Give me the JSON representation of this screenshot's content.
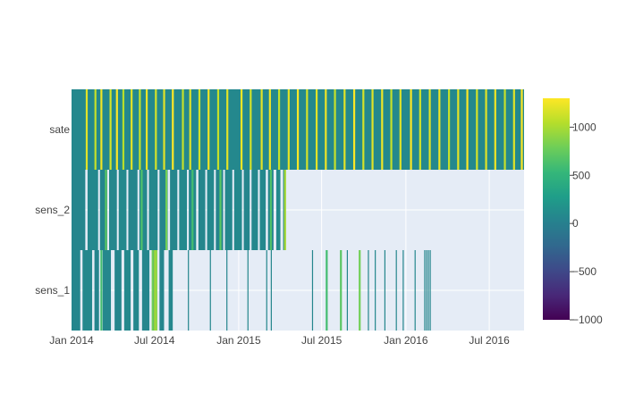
{
  "chart_data": {
    "type": "heatmap",
    "title": "",
    "xlabel": "",
    "ylabel": "",
    "x_range": [
      "2014-01-01",
      "2016-09-15"
    ],
    "x_ticks": [
      {
        "date": "2014-01-01",
        "label": "Jan 2014"
      },
      {
        "date": "2014-07-01",
        "label": "Jul 2014"
      },
      {
        "date": "2015-01-01",
        "label": "Jan 2015"
      },
      {
        "date": "2015-07-01",
        "label": "Jul 2015"
      },
      {
        "date": "2016-01-01",
        "label": "Jan 2016"
      },
      {
        "date": "2016-07-01",
        "label": "Jul 2016"
      }
    ],
    "rows": [
      "sens_1",
      "sens_2",
      "sate"
    ],
    "series": [
      {
        "name": "sate",
        "start": "2014-01-01",
        "end": "2016-09-15",
        "base_value": 80,
        "spikes": [
          {
            "date": "2014-02-01",
            "value": 1200
          },
          {
            "date": "2014-02-20",
            "value": 1100
          },
          {
            "date": "2014-03-05",
            "value": 1250
          },
          {
            "date": "2014-03-25",
            "value": 1150
          },
          {
            "date": "2014-04-08",
            "value": 1300
          },
          {
            "date": "2014-04-22",
            "value": 1050
          },
          {
            "date": "2014-05-10",
            "value": 1200
          },
          {
            "date": "2014-05-28",
            "value": 1100
          },
          {
            "date": "2014-06-12",
            "value": 1250
          },
          {
            "date": "2014-07-02",
            "value": 1150
          },
          {
            "date": "2014-07-20",
            "value": 1200
          },
          {
            "date": "2014-08-08",
            "value": 1300
          },
          {
            "date": "2014-08-30",
            "value": 1100
          },
          {
            "date": "2014-09-15",
            "value": 1200
          },
          {
            "date": "2014-10-05",
            "value": 1150
          },
          {
            "date": "2014-10-25",
            "value": 1250
          },
          {
            "date": "2014-11-15",
            "value": 1100
          },
          {
            "date": "2014-12-05",
            "value": 1200
          },
          {
            "date": "2015-01-05",
            "value": 1300
          },
          {
            "date": "2015-01-25",
            "value": 1150
          },
          {
            "date": "2015-02-18",
            "value": 1200
          },
          {
            "date": "2015-03-08",
            "value": 1250
          },
          {
            "date": "2015-03-28",
            "value": 1100
          },
          {
            "date": "2015-04-18",
            "value": 1200
          },
          {
            "date": "2015-05-08",
            "value": 1300
          },
          {
            "date": "2015-05-28",
            "value": 1150
          },
          {
            "date": "2015-06-18",
            "value": 1200
          },
          {
            "date": "2015-07-08",
            "value": 1250
          },
          {
            "date": "2015-07-28",
            "value": 1100
          },
          {
            "date": "2015-08-18",
            "value": 1200
          },
          {
            "date": "2015-09-08",
            "value": 1300
          },
          {
            "date": "2015-09-28",
            "value": 1150
          },
          {
            "date": "2015-10-18",
            "value": 1200
          },
          {
            "date": "2015-11-08",
            "value": 1250
          },
          {
            "date": "2015-11-28",
            "value": 1100
          },
          {
            "date": "2015-12-18",
            "value": 1200
          },
          {
            "date": "2016-01-10",
            "value": 1300
          },
          {
            "date": "2016-01-30",
            "value": 1150
          },
          {
            "date": "2016-02-20",
            "value": 1200
          },
          {
            "date": "2016-03-12",
            "value": 1250
          },
          {
            "date": "2016-04-02",
            "value": 1100
          },
          {
            "date": "2016-04-22",
            "value": 1200
          },
          {
            "date": "2016-05-12",
            "value": 1300
          },
          {
            "date": "2016-06-02",
            "value": 1150
          },
          {
            "date": "2016-06-22",
            "value": 1200
          },
          {
            "date": "2016-07-12",
            "value": 1250
          },
          {
            "date": "2016-08-02",
            "value": 1100
          },
          {
            "date": "2016-08-22",
            "value": 1200
          },
          {
            "date": "2016-09-08",
            "value": 1300
          }
        ]
      },
      {
        "name": "sens_2",
        "segments": [
          {
            "start": "2014-01-01",
            "end": "2014-01-31",
            "value": 60
          },
          {
            "start": "2014-02-05",
            "end": "2014-02-28",
            "value": 80
          },
          {
            "start": "2014-03-04",
            "end": "2014-03-20",
            "value": 50
          },
          {
            "start": "2014-03-24",
            "end": "2014-04-10",
            "value": 70
          },
          {
            "start": "2014-04-14",
            "end": "2014-05-01",
            "value": 90
          },
          {
            "start": "2014-05-05",
            "end": "2014-05-25",
            "value": 60
          },
          {
            "start": "2014-05-29",
            "end": "2014-06-15",
            "value": 70
          },
          {
            "start": "2014-06-19",
            "end": "2014-07-08",
            "value": 80
          },
          {
            "start": "2014-07-12",
            "end": "2014-07-30",
            "value": 50
          },
          {
            "start": "2014-08-04",
            "end": "2014-08-20",
            "value": 60
          },
          {
            "start": "2014-08-24",
            "end": "2014-09-10",
            "value": 90
          },
          {
            "start": "2014-09-14",
            "end": "2014-09-30",
            "value": 70
          },
          {
            "start": "2014-10-05",
            "end": "2014-10-20",
            "value": 60
          },
          {
            "start": "2014-10-24",
            "end": "2014-11-08",
            "value": 80
          },
          {
            "start": "2014-11-12",
            "end": "2014-11-28",
            "value": 50
          },
          {
            "start": "2014-12-02",
            "end": "2014-12-18",
            "value": 70
          },
          {
            "start": "2014-12-22",
            "end": "2015-01-08",
            "value": 90
          },
          {
            "start": "2015-01-12",
            "end": "2015-01-25",
            "value": 60
          },
          {
            "start": "2015-01-29",
            "end": "2015-02-12",
            "value": 70
          },
          {
            "start": "2015-02-16",
            "end": "2015-03-01",
            "value": 80
          },
          {
            "start": "2015-03-06",
            "end": "2015-03-18",
            "value": 60
          },
          {
            "start": "2015-03-24",
            "end": "2015-04-02",
            "value": 90
          },
          {
            "start": "2015-04-08",
            "end": "2015-04-14",
            "value": 70
          }
        ],
        "spikes": [
          {
            "date": "2014-03-15",
            "value": 700
          },
          {
            "date": "2014-06-01",
            "value": 650
          },
          {
            "date": "2014-07-25",
            "value": 800
          },
          {
            "date": "2014-09-20",
            "value": 600
          },
          {
            "date": "2014-11-20",
            "value": 700
          },
          {
            "date": "2015-03-10",
            "value": 650
          },
          {
            "date": "2015-04-10",
            "value": 1000
          }
        ]
      },
      {
        "name": "sens_1",
        "segments": [
          {
            "start": "2014-01-01",
            "end": "2014-01-20",
            "value": 60
          },
          {
            "start": "2014-01-25",
            "end": "2014-02-15",
            "value": 80
          },
          {
            "start": "2014-02-20",
            "end": "2014-03-02",
            "value": 50
          },
          {
            "start": "2014-03-10",
            "end": "2014-03-28",
            "value": 70
          },
          {
            "start": "2014-04-05",
            "end": "2014-04-20",
            "value": 60
          },
          {
            "start": "2014-04-26",
            "end": "2014-05-10",
            "value": 90
          },
          {
            "start": "2014-05-16",
            "end": "2014-05-28",
            "value": 70
          },
          {
            "start": "2014-06-04",
            "end": "2014-06-20",
            "value": 60
          },
          {
            "start": "2014-06-28",
            "end": "2014-07-06",
            "value": 80
          },
          {
            "start": "2014-07-12",
            "end": "2014-07-22",
            "value": 50
          },
          {
            "start": "2014-08-01",
            "end": "2014-08-10",
            "value": 70
          }
        ],
        "spikes": [
          {
            "date": "2014-03-05",
            "value": 600
          },
          {
            "date": "2014-06-25",
            "value": 800
          },
          {
            "date": "2014-06-30",
            "value": 1000
          },
          {
            "date": "2014-07-03",
            "value": 900
          },
          {
            "date": "2015-07-10",
            "value": 600
          },
          {
            "date": "2015-08-10",
            "value": 700
          },
          {
            "date": "2015-09-20",
            "value": 800
          }
        ],
        "events": [
          {
            "date": "2014-09-12",
            "value": 60
          },
          {
            "date": "2014-10-30",
            "value": 70
          },
          {
            "date": "2014-12-05",
            "value": 50
          },
          {
            "date": "2015-01-20",
            "value": 60
          },
          {
            "date": "2015-03-02",
            "value": 60
          },
          {
            "date": "2015-03-12",
            "value": 70
          },
          {
            "date": "2015-06-10",
            "value": 60
          },
          {
            "date": "2015-08-25",
            "value": 50
          },
          {
            "date": "2015-10-10",
            "value": 60
          },
          {
            "date": "2015-10-25",
            "value": 70
          },
          {
            "date": "2015-11-15",
            "value": 60
          },
          {
            "date": "2015-12-10",
            "value": 50
          },
          {
            "date": "2015-12-25",
            "value": 60
          },
          {
            "date": "2016-01-20",
            "value": 70
          },
          {
            "date": "2016-02-10",
            "value": 60
          },
          {
            "date": "2016-02-14",
            "value": 50
          },
          {
            "date": "2016-02-18",
            "value": 70
          },
          {
            "date": "2016-02-22",
            "value": 60
          }
        ]
      }
    ],
    "colorscale": "Viridis",
    "zmin": -1000,
    "zmax": 1300,
    "colorbar_ticks": [
      1000,
      500,
      0,
      -500,
      -1000
    ],
    "colorbar_tick_labels": [
      "1000",
      "500",
      "0",
      "−500",
      "−1000"
    ],
    "plot_background": "#e5ecf6",
    "grid_color": "#ffffff",
    "grid": true
  }
}
